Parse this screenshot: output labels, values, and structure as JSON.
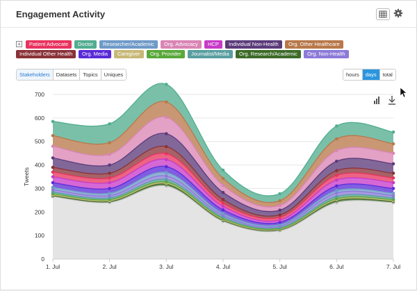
{
  "header": {
    "title": "Engagement Activity",
    "icons": [
      "table-icon",
      "gear-icon"
    ]
  },
  "categories": {
    "expand_symbol": "+",
    "items": [
      {
        "label": "Patient Advocate",
        "color": "#e8335e"
      },
      {
        "label": "Doctor",
        "color": "#52ad8f"
      },
      {
        "label": "Researcher/Academic",
        "color": "#6f9ac8"
      },
      {
        "label": "Org. Advocacy",
        "color": "#d985b4"
      },
      {
        "label": "HCP",
        "color": "#c83ac8"
      },
      {
        "label": "Individual Non-Health",
        "color": "#5b3a7a"
      },
      {
        "label": "Org. Other Healthcare",
        "color": "#b8784a"
      },
      {
        "label": "Individual Other Health",
        "color": "#8a3238"
      },
      {
        "label": "Org. Media",
        "color": "#5a2bd8"
      },
      {
        "label": "Caregiver",
        "color": "#c8b878"
      },
      {
        "label": "Org. Provider",
        "color": "#5aa83a"
      },
      {
        "label": "Journalist/Media",
        "color": "#5a9ea0"
      },
      {
        "label": "Org. Research/Academic",
        "color": "#3d6b28"
      },
      {
        "label": "Org. Non-Health",
        "color": "#8c7ad8"
      }
    ]
  },
  "view_tabs": [
    "Stakeholders",
    "Datasets",
    "Topics",
    "Uniques"
  ],
  "view_selected": "Stakeholders",
  "period_tabs": [
    "hours",
    "days",
    "total"
  ],
  "period_selected": "days",
  "chart_data": {
    "type": "area",
    "stacked": true,
    "ylabel": "Tweets",
    "ylim": [
      0,
      700
    ],
    "yticks": [
      0,
      100,
      200,
      300,
      400,
      500,
      600,
      700
    ],
    "categories": [
      "1. Jul",
      "2. Jul",
      "3. Jul",
      "4. Jul",
      "5. Jul",
      "6. Jul",
      "7. Jul"
    ],
    "grid": true,
    "legend": "none",
    "baseline_values": [
      265,
      240,
      310,
      160,
      120,
      240,
      240
    ],
    "series": [
      {
        "name": "Org. Research/Academic",
        "color": "#3d6b28",
        "values": [
          5,
          5,
          8,
          5,
          5,
          8,
          5
        ]
      },
      {
        "name": "Caregiver",
        "color": "#c8b878",
        "values": [
          3,
          3,
          4,
          3,
          2,
          4,
          3
        ]
      },
      {
        "name": "Org. Provider",
        "color": "#5aa83a",
        "values": [
          5,
          5,
          6,
          4,
          3,
          5,
          5
        ]
      },
      {
        "name": "Journalist/Media",
        "color": "#5a9ea0",
        "values": [
          7,
          7,
          10,
          6,
          4,
          9,
          7
        ]
      },
      {
        "name": "Org. Non-Health",
        "color": "#8c7ad8",
        "values": [
          10,
          10,
          15,
          8,
          6,
          15,
          10
        ]
      },
      {
        "name": "Researcher/Academic",
        "color": "#6f9ac8",
        "values": [
          10,
          10,
          15,
          8,
          6,
          10,
          10
        ]
      },
      {
        "name": "Org. Media",
        "color": "#5a2bd8",
        "values": [
          20,
          20,
          25,
          15,
          10,
          20,
          20
        ]
      },
      {
        "name": "HCP",
        "color": "#c83ac8",
        "values": [
          25,
          25,
          30,
          15,
          10,
          25,
          25
        ]
      },
      {
        "name": "Patient Advocate",
        "color": "#e8335e",
        "values": [
          20,
          20,
          25,
          14,
          12,
          20,
          20
        ]
      },
      {
        "name": "Individual Other Health",
        "color": "#8a3238",
        "values": [
          20,
          20,
          30,
          15,
          10,
          20,
          20
        ]
      },
      {
        "name": "Individual Non-Health",
        "color": "#5b3a7a",
        "values": [
          40,
          35,
          55,
          30,
          20,
          40,
          40
        ]
      },
      {
        "name": "Org. Advocacy",
        "color": "#d985b4",
        "values": [
          50,
          45,
          70,
          30,
          20,
          45,
          45
        ]
      },
      {
        "name": "Org. Other Healthcare",
        "color": "#b8784a",
        "values": [
          45,
          50,
          65,
          30,
          20,
          50,
          40
        ]
      },
      {
        "name": "Doctor",
        "color": "#52ad8f",
        "values": [
          60,
          80,
          75,
          35,
          30,
          55,
          50
        ]
      }
    ]
  }
}
